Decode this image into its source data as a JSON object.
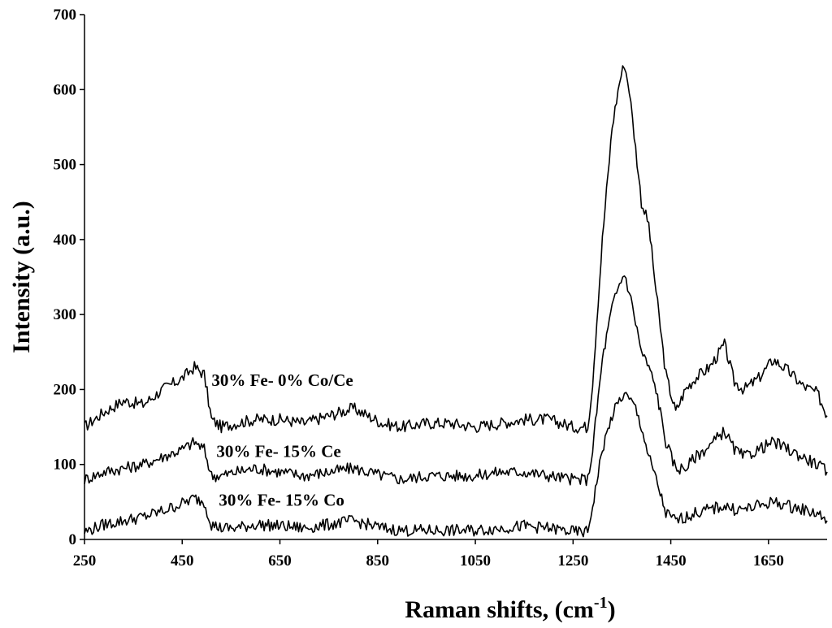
{
  "chart_data": {
    "type": "line",
    "xlabel": "Raman shifts, (cm",
    "xlabel_sup": "-1",
    "xlabel_close": ")",
    "ylabel": "Intensity (a.u.)",
    "xlim": [
      250,
      1770
    ],
    "ylim": [
      0,
      700
    ],
    "xticks": [
      "250",
      "450",
      "650",
      "850",
      "1050",
      "1250",
      "1450",
      "1650"
    ],
    "yticks": [
      "0",
      "100",
      "200",
      "300",
      "400",
      "500",
      "600",
      "700"
    ],
    "grid": false,
    "legend": "inline labels",
    "series": [
      {
        "name": "30% Fe- 0% Co/Ce",
        "x": [
          250,
          290,
          330,
          370,
          410,
          450,
          475,
          495,
          510,
          530,
          560,
          600,
          650,
          700,
          750,
          800,
          830,
          860,
          900,
          950,
          1000,
          1050,
          1100,
          1150,
          1200,
          1250,
          1280,
          1290,
          1310,
          1330,
          1345,
          1355,
          1365,
          1375,
          1390,
          1405,
          1420,
          1440,
          1460,
          1480,
          1500,
          1530,
          1560,
          1580,
          1600,
          1630,
          1660,
          1690,
          1720,
          1750,
          1770
        ],
        "y": [
          150,
          170,
          185,
          180,
          200,
          215,
          230,
          220,
          160,
          150,
          155,
          160,
          160,
          155,
          165,
          175,
          165,
          155,
          150,
          155,
          155,
          150,
          155,
          160,
          160,
          150,
          150,
          210,
          400,
          550,
          610,
          635,
          600,
          540,
          450,
          420,
          330,
          220,
          170,
          200,
          215,
          230,
          260,
          210,
          200,
          215,
          240,
          225,
          205,
          195,
          165
        ]
      },
      {
        "name": "30% Fe- 15% Ce",
        "x": [
          250,
          290,
          330,
          370,
          410,
          450,
          475,
          495,
          510,
          530,
          560,
          600,
          650,
          700,
          750,
          800,
          830,
          860,
          900,
          950,
          1000,
          1050,
          1100,
          1150,
          1200,
          1250,
          1280,
          1290,
          1310,
          1330,
          1345,
          1355,
          1365,
          1375,
          1390,
          1405,
          1420,
          1440,
          1460,
          1480,
          1500,
          1530,
          1560,
          1580,
          1600,
          1630,
          1660,
          1690,
          1720,
          1750,
          1770
        ],
        "y": [
          80,
          90,
          95,
          100,
          110,
          120,
          130,
          120,
          85,
          85,
          90,
          95,
          90,
          85,
          90,
          95,
          90,
          85,
          80,
          85,
          85,
          85,
          90,
          90,
          85,
          80,
          80,
          120,
          240,
          310,
          340,
          355,
          330,
          300,
          250,
          230,
          200,
          130,
          95,
          95,
          110,
          125,
          145,
          120,
          110,
          120,
          130,
          120,
          110,
          100,
          90
        ]
      },
      {
        "name": "30% Fe- 15% Co",
        "x": [
          250,
          290,
          330,
          370,
          410,
          450,
          475,
          495,
          510,
          530,
          560,
          600,
          650,
          700,
          750,
          800,
          830,
          860,
          900,
          950,
          1000,
          1050,
          1100,
          1150,
          1200,
          1250,
          1280,
          1290,
          1310,
          1330,
          1345,
          1355,
          1365,
          1375,
          1390,
          1405,
          1420,
          1440,
          1460,
          1480,
          1500,
          1530,
          1560,
          1580,
          1600,
          1630,
          1660,
          1690,
          1720,
          1750,
          1770
        ],
        "y": [
          10,
          20,
          25,
          30,
          38,
          48,
          55,
          50,
          20,
          15,
          15,
          20,
          18,
          15,
          20,
          25,
          20,
          15,
          12,
          12,
          12,
          12,
          15,
          18,
          15,
          10,
          10,
          45,
          120,
          165,
          185,
          195,
          185,
          180,
          150,
          110,
          80,
          35,
          25,
          30,
          35,
          40,
          45,
          40,
          40,
          45,
          50,
          45,
          40,
          35,
          25
        ]
      }
    ],
    "annotations": [
      {
        "text": "30% Fe- 0% Co/Ce",
        "x": 510,
        "y": 205
      },
      {
        "text": "30% Fe- 15% Ce",
        "x": 520,
        "y": 110
      },
      {
        "text": "30% Fe- 15% Co",
        "x": 525,
        "y": 45
      }
    ]
  }
}
